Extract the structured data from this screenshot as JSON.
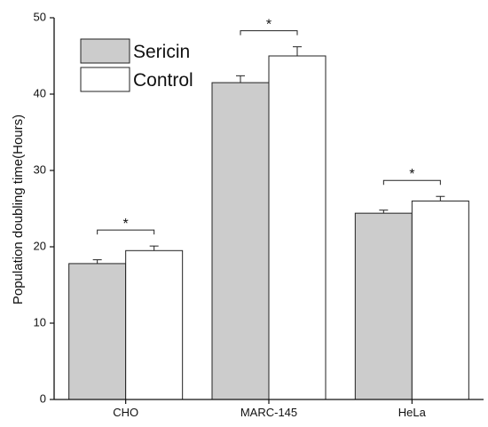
{
  "chart_data": {
    "type": "bar",
    "title": "",
    "xlabel": "",
    "ylabel": "Population doubling time(Hours)",
    "ylim": [
      0,
      50
    ],
    "yticks": [
      0,
      10,
      20,
      30,
      40,
      50
    ],
    "categories": [
      "CHO",
      "MARC-145",
      "HeLa"
    ],
    "series": [
      {
        "name": "Sericin",
        "values": [
          17.8,
          41.5,
          24.4
        ],
        "errors": [
          0.5,
          0.9,
          0.4
        ],
        "color": "#cccccc"
      },
      {
        "name": "Control",
        "values": [
          19.5,
          45.0,
          26.0
        ],
        "errors": [
          0.6,
          1.2,
          0.6
        ],
        "color": "#ffffff"
      }
    ],
    "significance": [
      {
        "category": "CHO",
        "label": "*"
      },
      {
        "category": "MARC-145",
        "label": "*"
      },
      {
        "category": "HeLa",
        "label": "*"
      }
    ],
    "legend_position": "top-left",
    "grid": false,
    "error_bars": true
  }
}
